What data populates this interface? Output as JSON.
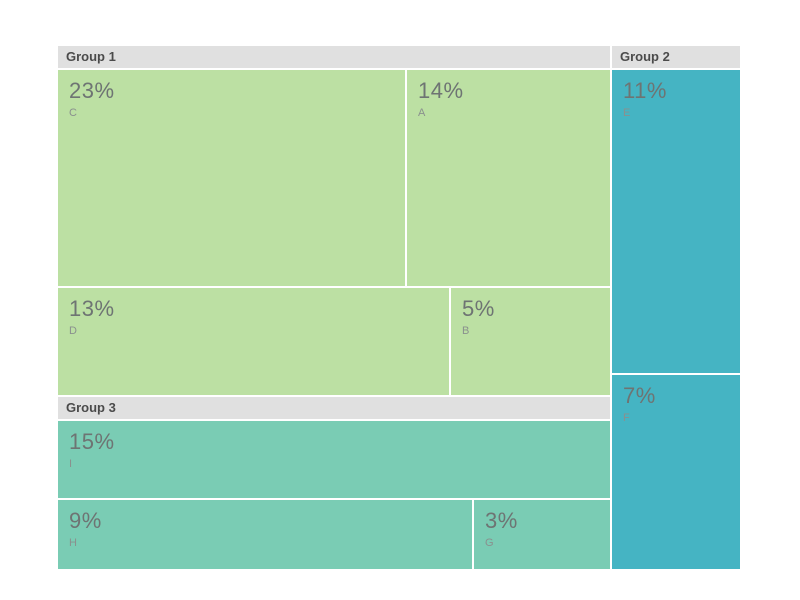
{
  "chart_data": {
    "type": "treemap",
    "title": "",
    "total": 100,
    "unit": "%",
    "legend_position": "none",
    "groups": [
      {
        "name": "Group 1",
        "total": 55,
        "children": [
          {
            "label": "C",
            "value": 23
          },
          {
            "label": "A",
            "value": 14
          },
          {
            "label": "D",
            "value": 13
          },
          {
            "label": "B",
            "value": 5
          }
        ]
      },
      {
        "name": "Group 2",
        "total": 18,
        "children": [
          {
            "label": "E",
            "value": 11
          },
          {
            "label": "F",
            "value": 7
          }
        ]
      },
      {
        "name": "Group 3",
        "total": 27,
        "children": [
          {
            "label": "I",
            "value": 15
          },
          {
            "label": "H",
            "value": 9
          },
          {
            "label": "G",
            "value": 3
          }
        ]
      }
    ]
  },
  "headers": {
    "g1": "Group 1",
    "g2": "Group 2",
    "g3": "Group 3"
  },
  "cells": {
    "c": {
      "pct": "23%",
      "label": "C"
    },
    "a": {
      "pct": "14%",
      "label": "A"
    },
    "d": {
      "pct": "13%",
      "label": "D"
    },
    "b": {
      "pct": "5%",
      "label": "B"
    },
    "e": {
      "pct": "11%",
      "label": "E"
    },
    "f": {
      "pct": "7%",
      "label": "F"
    },
    "i": {
      "pct": "15%",
      "label": "I"
    },
    "h": {
      "pct": "9%",
      "label": "H"
    },
    "g": {
      "pct": "3%",
      "label": "G"
    }
  },
  "colors": {
    "group1": "#bce0a3",
    "group2": "#45b4c3",
    "group3": "#7accb4",
    "header_bg": "#e0e0e0",
    "header_text": "#4b4b4b",
    "value_text": "#6e7473",
    "label_text": "#8a908e",
    "background": "#ffffff"
  }
}
